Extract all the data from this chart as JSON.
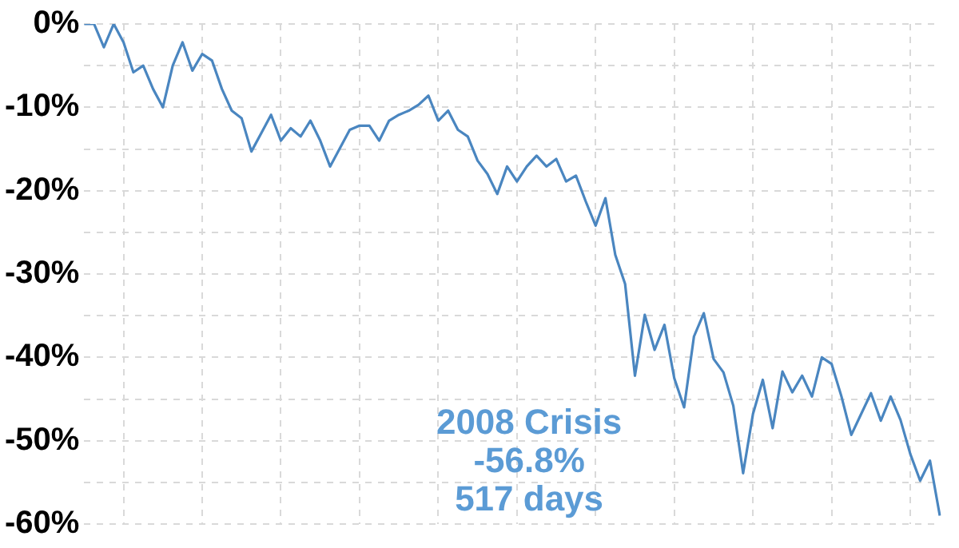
{
  "chart_data": {
    "type": "line",
    "categories": [
      null,
      null,
      null,
      null,
      null,
      null,
      null,
      null,
      null,
      null,
      null,
      null,
      null,
      null,
      null,
      null,
      null,
      null,
      null,
      null,
      null,
      null,
      null,
      null,
      null,
      null,
      null,
      null,
      null,
      null,
      null,
      null,
      null,
      null,
      null,
      null,
      null,
      null,
      null,
      null,
      null,
      null,
      null,
      null,
      null,
      null,
      null,
      null,
      null,
      null,
      null,
      null,
      null,
      null,
      null,
      null,
      null,
      null,
      null,
      null,
      null,
      null,
      null,
      null,
      null,
      null,
      null,
      null,
      null,
      null,
      null,
      null,
      null,
      null,
      null,
      null,
      null,
      null,
      null,
      null,
      null,
      null,
      null,
      null,
      null,
      null,
      null,
      null
    ],
    "series": [
      {
        "color": "#4a86c0",
        "values": [
          0,
          0,
          -2.8,
          0,
          -2.2,
          -5.8,
          -5,
          -7.8,
          -10,
          -5,
          -2.2,
          -5.6,
          -3.6,
          -4.4,
          -7.8,
          -10.4,
          -11.3,
          -15.3,
          -13.1,
          -10.9,
          -14,
          -12.5,
          -13.5,
          -11.6,
          -14,
          -17.1,
          -14.9,
          -12.7,
          -12.2,
          -12.2,
          -14,
          -11.6,
          -10.9,
          -10.4,
          -9.7,
          -8.6,
          -11.6,
          -10.4,
          -12.7,
          -13.5,
          -16.4,
          -18,
          -20.4,
          -17.1,
          -18.9,
          -17.1,
          -15.8,
          -17.1,
          -16.2,
          -18.9,
          -18.2,
          -21.3,
          -24.2,
          -20.9,
          -27.7,
          -31.2,
          -42.2,
          -34.9,
          -39.1,
          -36.1,
          -42.5,
          -46,
          -37.5,
          -34.7,
          -40.2,
          -41.8,
          -45.8,
          -53.9,
          -46.8,
          -42.7,
          -48.5,
          -41.7,
          -44.2,
          -42.2,
          -44.7,
          -40,
          -40.8,
          -44.7,
          -49.3,
          -46.8,
          -44.3,
          -47.6,
          -44.7,
          -47.5,
          -51.6,
          -54.8,
          -52.4,
          -59
        ]
      }
    ],
    "ylim": [
      -60,
      0
    ],
    "yticks": [
      {
        "value": 0,
        "label": "0%"
      },
      {
        "value": -5,
        "label": null
      },
      {
        "value": -10,
        "label": "-10%"
      },
      {
        "value": -15,
        "label": null
      },
      {
        "value": -20,
        "label": "-20%"
      },
      {
        "value": -25,
        "label": null
      },
      {
        "value": -30,
        "label": "-30%"
      },
      {
        "value": -35,
        "label": null
      },
      {
        "value": -40,
        "label": "-40%"
      },
      {
        "value": -45,
        "label": null
      },
      {
        "value": -50,
        "label": "-50%"
      },
      {
        "value": -55,
        "label": null
      },
      {
        "value": -60,
        "label": "-60%"
      }
    ],
    "grid": true,
    "tick_labels": "y",
    "marker": "none",
    "annotations": [
      "2008 Crisis",
      "-56.8%",
      "517 days"
    ]
  }
}
